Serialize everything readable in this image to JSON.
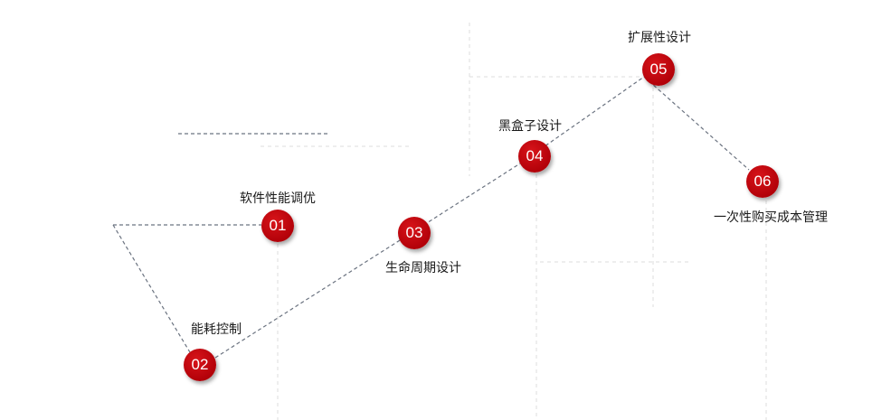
{
  "steps": [
    {
      "number": "01",
      "label": "软件性能调优"
    },
    {
      "number": "02",
      "label": "能耗控制"
    },
    {
      "number": "03",
      "label": "生命周期设计"
    },
    {
      "number": "04",
      "label": "黑盒子设计"
    },
    {
      "number": "05",
      "label": "扩展性设计"
    },
    {
      "number": "06",
      "label": "一次性购买成本管理"
    }
  ],
  "colors": {
    "node": "#c4000a",
    "connector": "#6b7380",
    "grid": "#dcdcdc"
  }
}
